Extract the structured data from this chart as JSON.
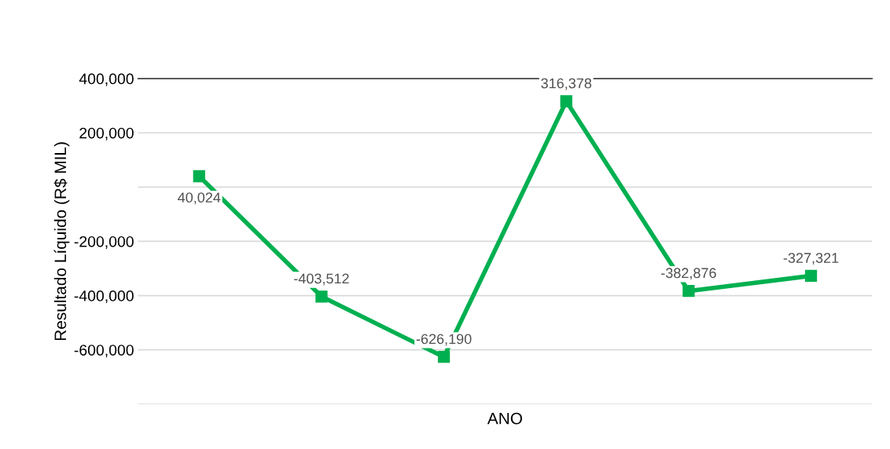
{
  "chart_data": {
    "type": "line",
    "ylabel": "Resultado Líquido (R$ MIL)",
    "xlabel": "ANO",
    "categories": [
      null,
      null,
      null,
      null,
      null,
      null
    ],
    "series": [
      {
        "color": "#00b050",
        "values": [
          40024,
          -403512,
          -626190,
          316378,
          -382876,
          -327321
        ],
        "value_labels": [
          "40,024",
          "-403,512",
          "-626,190",
          "316,378",
          "-382,876",
          "-327,321"
        ]
      }
    ],
    "ylim": [
      -800000,
      400000
    ],
    "yticks": [
      {
        "value": 400000,
        "label": "400,000"
      },
      {
        "value": 200000,
        "label": "200,000"
      },
      {
        "value": 0,
        "label": null
      },
      {
        "value": -200000,
        "label": "-200,000"
      },
      {
        "value": -400000,
        "label": "-400,000"
      },
      {
        "value": -600000,
        "label": "-600,000"
      },
      {
        "value": -800000,
        "label": null
      }
    ],
    "grid": "y",
    "marker": "square",
    "line_style": "solid",
    "legend": false
  }
}
